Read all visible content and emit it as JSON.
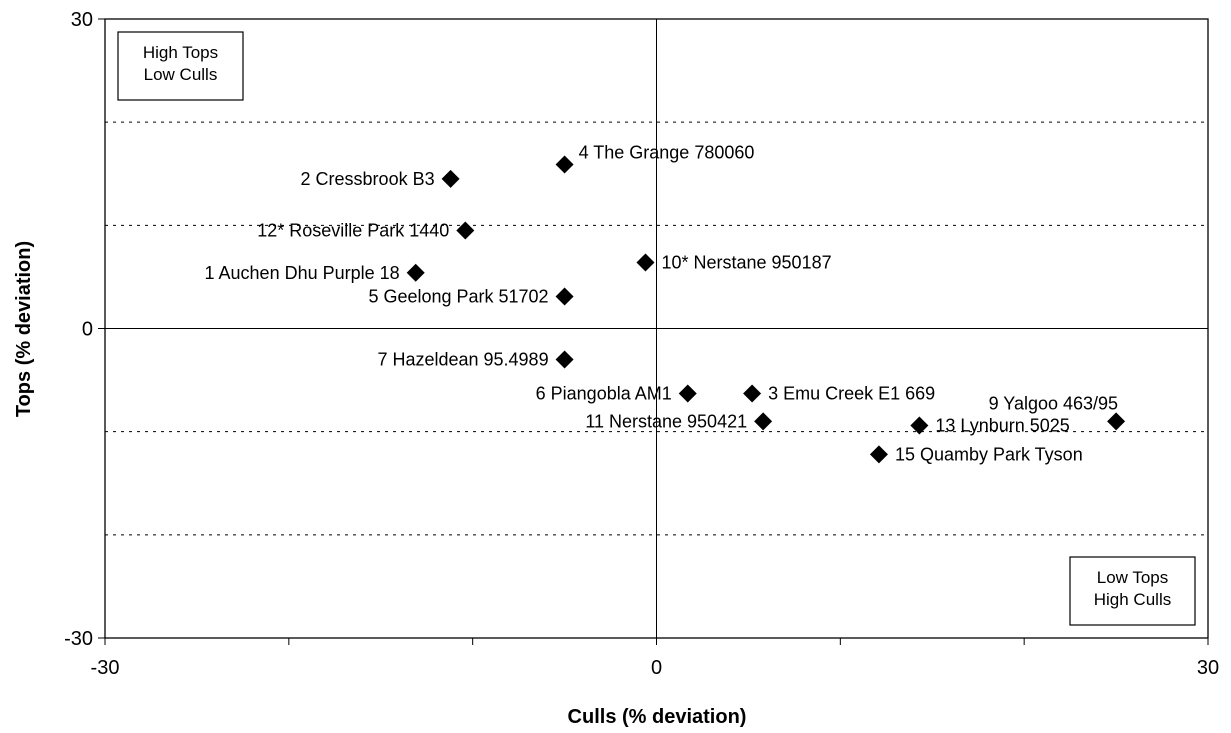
{
  "chart_data": {
    "type": "scatter",
    "xlabel": "Culls (% deviation)",
    "ylabel": "Tops (% deviation)",
    "xlim": [
      -30,
      30
    ],
    "ylim": [
      -30,
      30
    ],
    "x_ticks": [
      -30,
      -20,
      -10,
      0,
      10,
      20,
      30
    ],
    "x_tick_labels": [
      "-30",
      "",
      "",
      "0",
      "",
      "",
      "30"
    ],
    "y_tick_labels": [
      "30",
      "0",
      "-30"
    ],
    "y_tick_values": [
      30,
      0,
      -30
    ],
    "gridlines_y": [
      20,
      10,
      -10,
      -20
    ],
    "grid": "dotted horizontal lines",
    "zero_lines": true,
    "points": [
      {
        "label": "1 Auchen Dhu Purple 18",
        "x": -13.1,
        "y": 5.4,
        "label_side": "left"
      },
      {
        "label": "2 Cressbrook B3",
        "x": -11.2,
        "y": 14.5,
        "label_side": "left"
      },
      {
        "label": "3 Emu Creek E1 669",
        "x": 5.2,
        "y": -6.3,
        "label_side": "right"
      },
      {
        "label": "4 The Grange 780060",
        "x": -5.0,
        "y": 15.9,
        "label_side": "above-right"
      },
      {
        "label": "5 Geelong Park 51702",
        "x": -5.0,
        "y": 3.1,
        "label_side": "left"
      },
      {
        "label": "6 Piangobla AM1",
        "x": 1.7,
        "y": -6.3,
        "label_side": "left"
      },
      {
        "label": "7 Hazeldean 95.4989",
        "x": -5.0,
        "y": -3.0,
        "label_side": "left"
      },
      {
        "label": "9 Yalgoo 463/95",
        "x": 25.0,
        "y": -9.0,
        "label_side": "above-left"
      },
      {
        "label": "10* Nerstane 950187",
        "x": -0.6,
        "y": 6.4,
        "label_side": "right"
      },
      {
        "label": "11 Nerstane 950421",
        "x": 5.8,
        "y": -9.0,
        "label_side": "left"
      },
      {
        "label": "12* Roseville Park 1440",
        "x": -10.4,
        "y": 9.5,
        "label_side": "left"
      },
      {
        "label": "13 Lynburn 5025",
        "x": 14.3,
        "y": -9.4,
        "label_side": "right"
      },
      {
        "label": "15 Quamby Park Tyson",
        "x": 12.1,
        "y": -12.2,
        "label_side": "right"
      }
    ],
    "annotations": [
      {
        "lines": [
          "High Tops",
          "Low Culls"
        ],
        "position": "top-left"
      },
      {
        "lines": [
          "Low Tops",
          "High Culls"
        ],
        "position": "bottom-right"
      }
    ],
    "marker": {
      "shape": "diamond",
      "color": "#000000"
    },
    "colors": {
      "gridline": "#000000",
      "axis": "#000000",
      "background": "#ffffff"
    }
  }
}
